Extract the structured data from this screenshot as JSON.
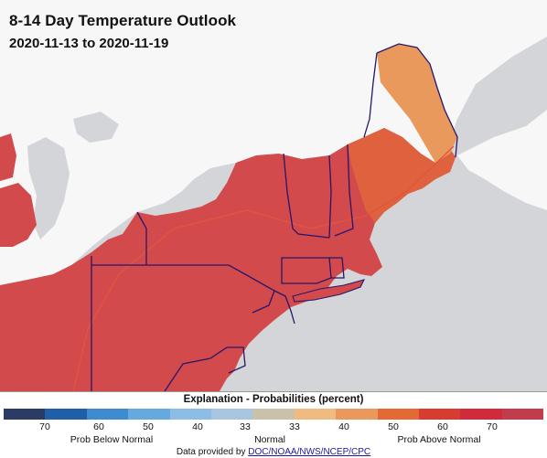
{
  "header": {
    "title": "8-14 Day Temperature Outlook",
    "dates": "2020-11-13 to 2020-11-19"
  },
  "legend": {
    "title": "Explanation - Probabilities (percent)",
    "bins": [
      {
        "color": "#2b3b63"
      },
      {
        "color": "#1f5fa7"
      },
      {
        "color": "#3f8bd0"
      },
      {
        "color": "#66a9de"
      },
      {
        "color": "#8dbde4"
      },
      {
        "color": "#a8c6e0"
      },
      {
        "color": "#c9c1a9"
      },
      {
        "color": "#f0bb80"
      },
      {
        "color": "#e9995c"
      },
      {
        "color": "#e36a34"
      },
      {
        "color": "#d83c31"
      },
      {
        "color": "#cf2b3a"
      },
      {
        "color": "#c23d4b"
      }
    ],
    "ticks": [
      "70",
      "60",
      "50",
      "40",
      "33",
      "33",
      "40",
      "50",
      "60",
      "70"
    ],
    "groups": [
      "Prob Below Normal",
      "Normal",
      "Prob Above Normal"
    ],
    "credit_prefix": "Data provided by",
    "credit_link": "DOC/NOAA/NWS/NCEP/CPC"
  },
  "colors": {
    "map_background": "#d3d5d8",
    "land": "#f7f7f7",
    "water": "#d3d5d8",
    "above_60_70": "#d24a4c",
    "above_50_60": "#e2653c",
    "above_40_50": "#e9995c",
    "state_border": "#27166b"
  },
  "icons": {
    "map": "usa-northeast-map"
  }
}
